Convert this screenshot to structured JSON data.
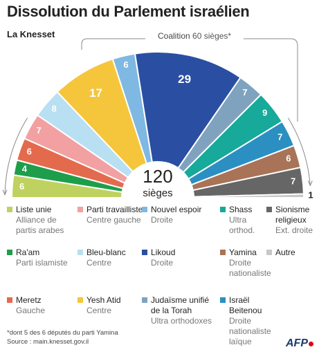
{
  "title": "Dissolution du Parlement israélien",
  "subtitle": "La Knesset",
  "coalition": {
    "label": "Coalition",
    "count": "60 sièges*"
  },
  "center": {
    "total": "120",
    "unit": "sièges"
  },
  "chart_data": {
    "type": "pie",
    "shape": "semicircle",
    "total": 120,
    "slices": [
      {
        "name": "Liste unie",
        "value": 6,
        "color": "#bfd260"
      },
      {
        "name": "Ra'am",
        "value": 4,
        "color": "#1e9e4a"
      },
      {
        "name": "Meretz",
        "value": 6,
        "color": "#e46a4e"
      },
      {
        "name": "Parti travailliste",
        "value": 7,
        "color": "#f2a0a1"
      },
      {
        "name": "Bleu-blanc",
        "value": 8,
        "color": "#b9dff2"
      },
      {
        "name": "Yesh Atid",
        "value": 17,
        "color": "#f5c53c"
      },
      {
        "name": "Nouvel espoir",
        "value": 6,
        "color": "#7fb8e2"
      },
      {
        "name": "Likoud",
        "value": 29,
        "color": "#2a4fa2"
      },
      {
        "name": "Judaïsme unifié de la Torah",
        "value": 7,
        "color": "#7fa3bf"
      },
      {
        "name": "Shass",
        "value": 9,
        "color": "#17a99a"
      },
      {
        "name": "Israël Beitenou",
        "value": 7,
        "color": "#2b8fc2"
      },
      {
        "name": "Yamina",
        "value": 6,
        "color": "#a87357"
      },
      {
        "name": "Sionisme religieux",
        "value": 7,
        "color": "#666666"
      },
      {
        "name": "Autre",
        "value": 1,
        "color": "#c8c8c8"
      }
    ]
  },
  "legend": [
    {
      "name": "Liste unie",
      "desc": "Alliance de partis arabes",
      "color": "#bfd260"
    },
    {
      "name": "Parti travailliste",
      "desc": "Centre gauche",
      "color": "#f2a0a1"
    },
    {
      "name": "Nouvel espoir",
      "desc": "Droite",
      "color": "#7fb8e2"
    },
    {
      "name": "Shass",
      "desc": "Ultra orthod.",
      "color": "#17a99a"
    },
    {
      "name": "Sionisme religieux",
      "desc": "Ext. droite",
      "color": "#666666"
    },
    {
      "name": "Ra'am",
      "desc": "Parti islamiste",
      "color": "#1e9e4a"
    },
    {
      "name": "Bleu-blanc",
      "desc": "Centre",
      "color": "#b9dff2"
    },
    {
      "name": "Likoud",
      "desc": "Droite",
      "color": "#2a4fa2"
    },
    {
      "name": "Yamina",
      "desc": "Droite nationaliste",
      "color": "#a87357"
    },
    {
      "name": "Autre",
      "desc": "",
      "color": "#c8c8c8"
    },
    {
      "name": "Meretz",
      "desc": "Gauche",
      "color": "#e46a4e"
    },
    {
      "name": "Yesh Atid",
      "desc": "Centre",
      "color": "#f5c53c"
    },
    {
      "name": "Judaïsme unifié de la Torah",
      "desc": "Ultra orthodoxes",
      "color": "#7fa3bf"
    },
    {
      "name": "Israël Beitenou",
      "desc": "Droite nationaliste laïque",
      "color": "#2b8fc2"
    }
  ],
  "footnote": "*dont 5 des 6 députés du parti Yamina",
  "source": "Source : main.knesset.gov.il",
  "logo": "AFP"
}
